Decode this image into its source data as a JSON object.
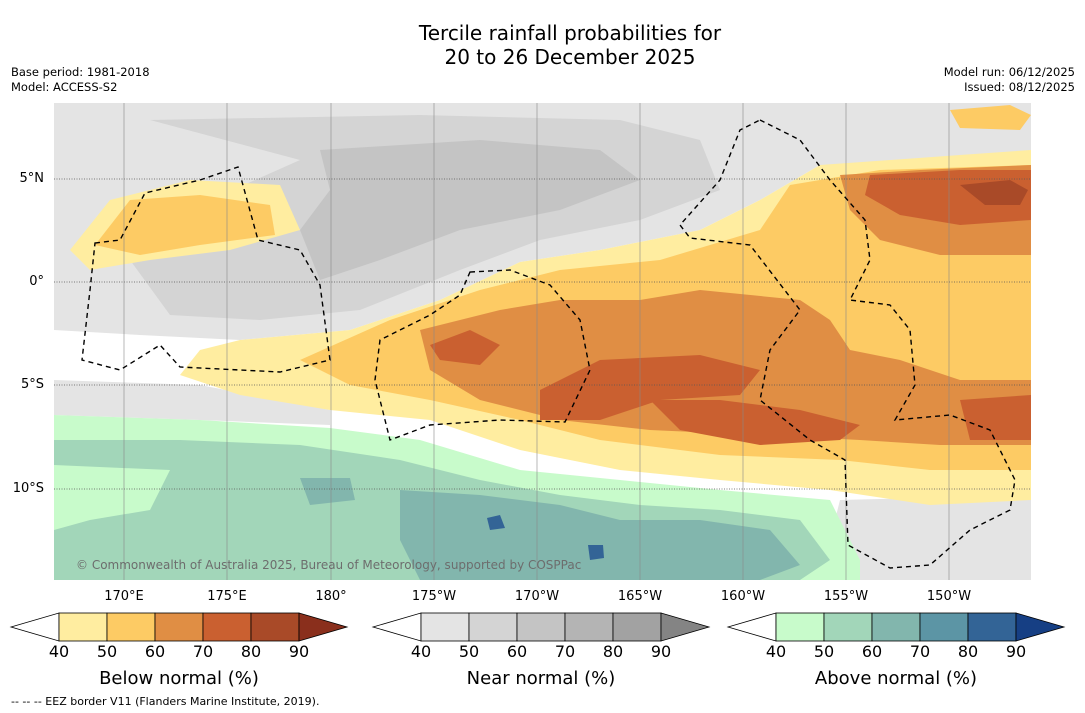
{
  "title_line1": "Tercile rainfall probabilities for",
  "title_line2": "20 to 26 December 2025",
  "base_period": "Base period: 1981-2018",
  "model": "Model: ACCESS-S2",
  "model_run": "Model run: 06/12/2025",
  "issued": "Issued: 08/12/2025",
  "latitude_labels": [
    "5°N",
    "0°",
    "5°S",
    "10°S"
  ],
  "longitude_labels": [
    "170°E",
    "175°E",
    "180°",
    "175°W",
    "170°W",
    "165°W",
    "160°W",
    "155°W",
    "150°W"
  ],
  "copyright": "© Commonwealth of Australia 2025, Bureau of Meteorology, supported by COSPPac",
  "footer": "--  --  -- EEZ border V11 (Flanders Marine Institute, 2019).",
  "legends": [
    {
      "label": "Below normal (%)",
      "ticks": [
        "40",
        "50",
        "60",
        "70",
        "80",
        "90"
      ],
      "colors": [
        "#ffeda0",
        "#fdcb64",
        "#e08e44",
        "#ca6030",
        "#a94a28",
        "#8a2f1c"
      ]
    },
    {
      "label": "Near normal (%)",
      "ticks": [
        "40",
        "50",
        "60",
        "70",
        "80",
        "90"
      ],
      "colors": [
        "#e4e4e4",
        "#d4d4d4",
        "#c4c4c4",
        "#b4b4b4",
        "#a2a2a2",
        "#848484"
      ]
    },
    {
      "label": "Above normal (%)",
      "ticks": [
        "40",
        "50",
        "60",
        "70",
        "80",
        "90"
      ],
      "colors": [
        "#c8fbcb",
        "#a2d6b9",
        "#82b6ad",
        "#5c95a5",
        "#336496",
        "#163f84"
      ]
    }
  ]
}
